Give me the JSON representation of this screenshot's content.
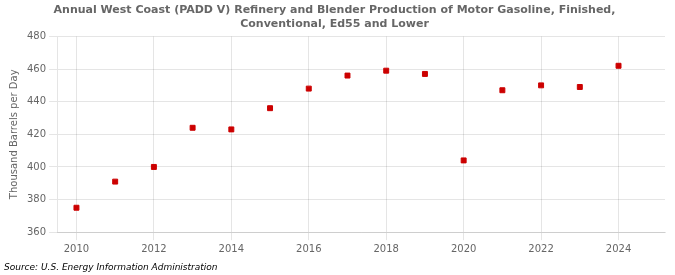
{
  "chart_data": {
    "type": "scatter",
    "title": "Annual West Coast (PADD V) Refinery and Blender Production of Motor Gasoline, Finished,\nConventional, Ed55 and Lower",
    "ylabel": "Thousand Barrels per Day",
    "annotation": "Source: U.S. Energy Information Administration",
    "x": [
      2010,
      2011,
      2012,
      2013,
      2014,
      2015,
      2016,
      2017,
      2018,
      2019,
      2020,
      2021,
      2022,
      2023,
      2024
    ],
    "values": [
      375,
      391,
      400,
      424,
      423,
      436,
      448,
      456,
      459,
      457,
      404,
      447,
      450,
      449,
      462
    ],
    "color": "#cc0000",
    "marker": "square",
    "xlim": [
      2009.5,
      2025.2
    ],
    "xticks": [
      2010,
      2012,
      2014,
      2016,
      2018,
      2020,
      2022,
      2024
    ],
    "ylim": [
      360,
      480
    ],
    "yticks": [
      360,
      380,
      400,
      420,
      440,
      460,
      480
    ],
    "grid": true
  }
}
